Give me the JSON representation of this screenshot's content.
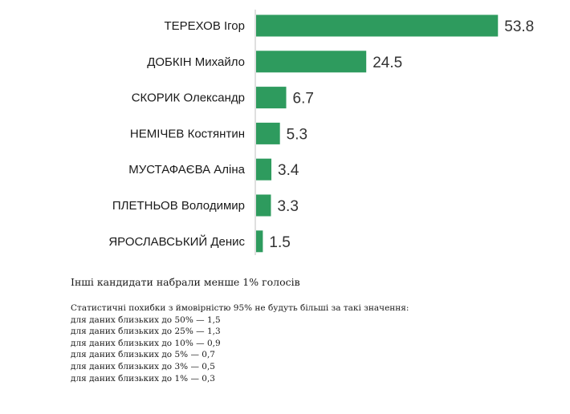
{
  "chart_data": {
    "type": "bar",
    "orientation": "horizontal",
    "categories": [
      "ТЕРЕХОВ Ігор",
      "ДОБКІН Михайло",
      "СКОРИК Олександр",
      "НЕМІЧЕВ Костянтин",
      "МУСТАФАЄВА Аліна",
      "ПЛЕТНЬОВ Володимир",
      "ЯРОСЛАВСЬКИЙ Денис"
    ],
    "values": [
      53.8,
      24.5,
      6.7,
      5.3,
      3.4,
      3.3,
      1.5
    ],
    "value_labels": [
      "53.8",
      "24.5",
      "6.7",
      "5.3",
      "3.4",
      "3.3",
      "1.5"
    ],
    "bar_color": "#2e9b5e",
    "xlim": [
      0,
      60
    ],
    "title": "",
    "xlabel": "",
    "ylabel": "",
    "grid": false,
    "legend": "none"
  },
  "notes": {
    "main": "Інші кандидати набрали менше 1% голосів",
    "errors_title": "Статистичні похибки з ймовірністю 95% не будуть більші за такі значення:",
    "errors": [
      "для даних близьких до 50% — 1,5",
      "для даних близьких до 25% — 1,3",
      "для даних близьких до 10% — 0,9",
      "для даних близьких до 5% — 0,7",
      "для даних близьких до 3% — 0,5",
      "для даних близьких до 1% — 0,3"
    ]
  }
}
